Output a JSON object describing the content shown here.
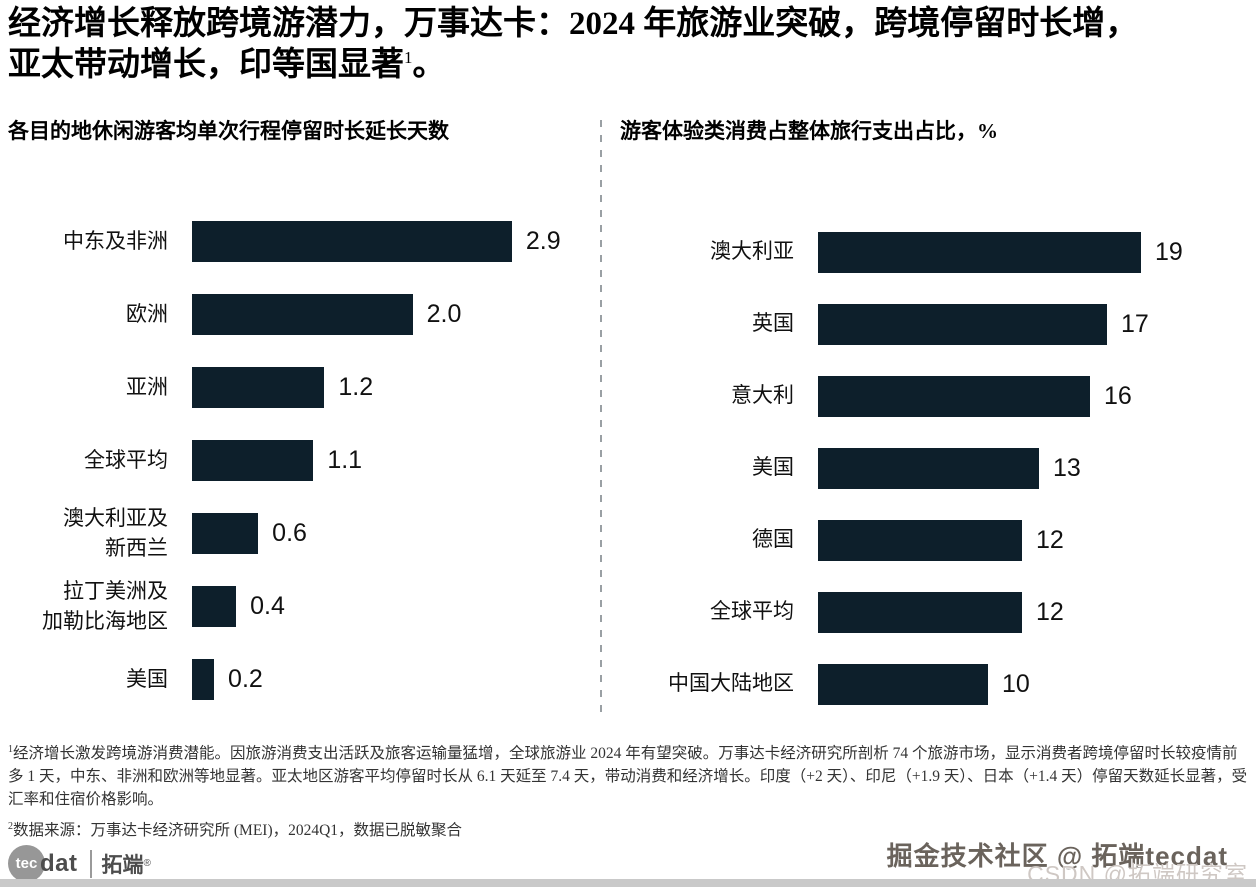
{
  "page": {
    "title": {
      "line1": "经济增长释放跨境游潜力，万事达卡：2024 年旅游业突破，跨境停留时长增，",
      "line2": "亚太带动增长，印等国显著",
      "footnote_marker": "1",
      "line2_end": "。"
    }
  },
  "chart_data": [
    {
      "type": "bar",
      "orientation": "horizontal",
      "title": "各目的地休闲游客均单次行程停留时长延长天数",
      "categories": [
        "中东及非洲",
        "欧洲",
        "亚洲",
        "全球平均",
        "澳大利亚及\n新西兰",
        "拉丁美洲及\n加勒比海地区",
        "美国"
      ],
      "values": [
        2.9,
        2.0,
        1.2,
        1.1,
        0.6,
        0.4,
        0.2
      ],
      "value_labels": [
        "2.9",
        "2.0",
        "1.2",
        "1.1",
        "0.6",
        "0.4",
        "0.2"
      ],
      "xlim": [
        0,
        3.0
      ],
      "grid": false,
      "legend": "none",
      "bar_color": "#0d1f2b"
    },
    {
      "type": "bar",
      "orientation": "horizontal",
      "title": "游客体验类消费占整体旅行支出占比，%",
      "categories": [
        "澳大利亚",
        "英国",
        "意大利",
        "美国",
        "德国",
        "全球平均",
        "中国大陆地区"
      ],
      "values": [
        19,
        17,
        16,
        13,
        12,
        12,
        10
      ],
      "value_labels": [
        "19",
        "17",
        "16",
        "13",
        "12",
        "12",
        "10"
      ],
      "xlim": [
        0,
        20
      ],
      "grid": false,
      "legend": "none",
      "bar_color": "#0d1f2b"
    }
  ],
  "footnotes": [
    {
      "marker": "1",
      "text": "经济增长激发跨境游消费潜能。因旅游消费支出活跃及旅客运输量猛增，全球旅游业 2024 年有望突破。万事达卡经济研究所剖析 74 个旅游市场，显示消费者跨境停留时长较疫情前多 1 天，中东、非洲和欧洲等地显著。亚太地区游客平均停留时长从 6.1 天延至 7.4 天，带动消费和经济增长。印度（+2 天）、印尼（+1.9 天）、日本（+1.4 天）停留天数延长显著，受汇率和住宿价格影响。"
    },
    {
      "marker": "2",
      "text": "数据来源：万事达卡经济研究所 (MEI)，2024Q1，数据已脱敏聚合"
    }
  ],
  "branding": {
    "logo_circle_text": "tec",
    "logo_text": "dat",
    "logo_cn": "拓端",
    "logo_reg": "®"
  },
  "watermarks": {
    "juejin": "掘金技术社区 @ 拓端tecdat",
    "csdn": "CSDN @拓端研究室"
  },
  "colors": {
    "bar": "#0d1f2b",
    "divider": "#9aa0a4",
    "footnote_text": "#333333",
    "watermark_dark": "#6a635c",
    "watermark_light": "#cfc8c4"
  }
}
